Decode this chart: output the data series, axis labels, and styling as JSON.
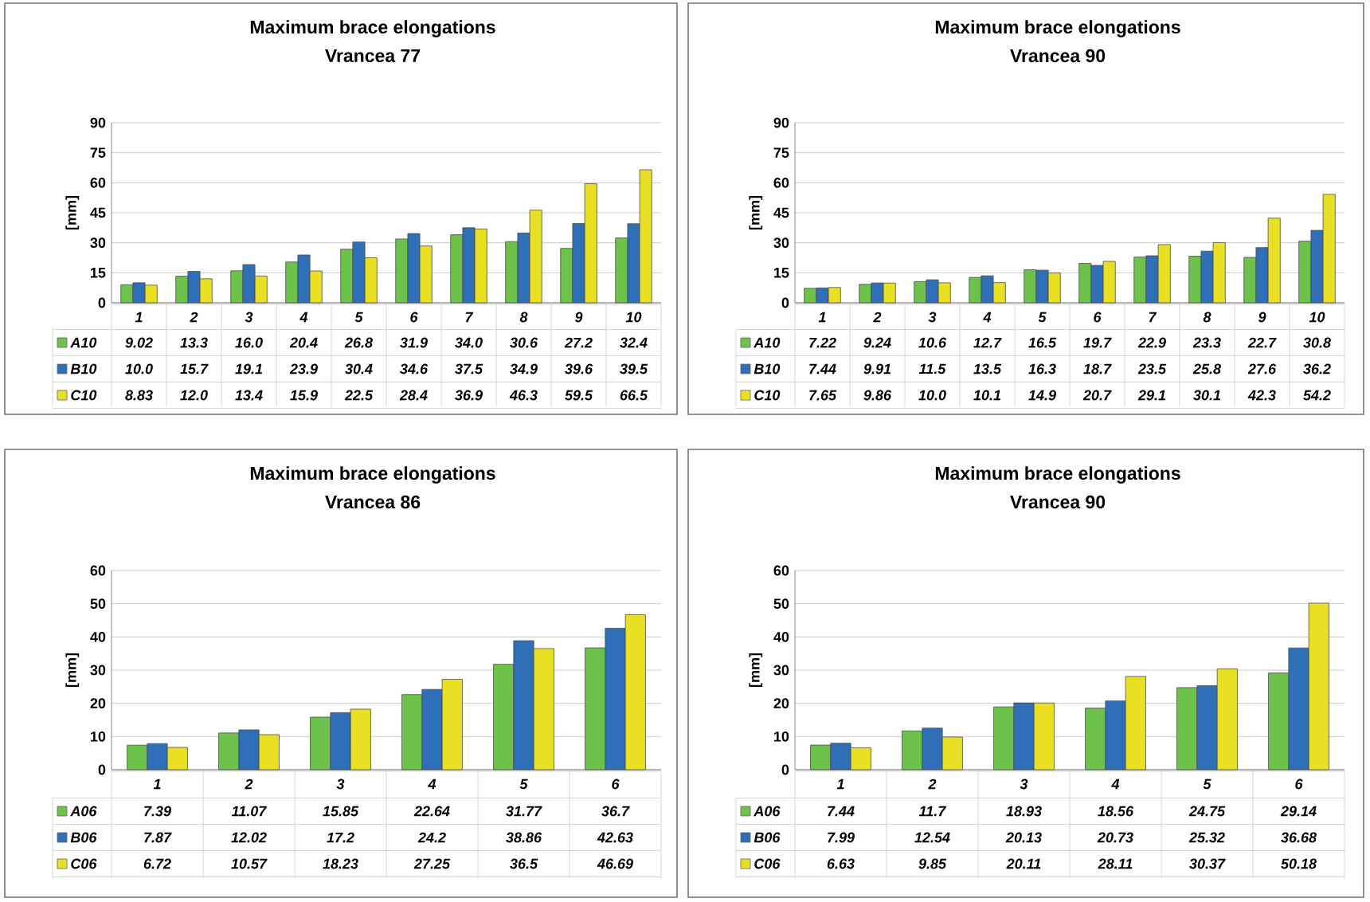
{
  "chart_data": [
    {
      "type": "bar",
      "title": "Maximum brace elongations",
      "subtitle": "Vrancea 77",
      "ylabel": "[mm]",
      "categories": [
        "1",
        "2",
        "3",
        "4",
        "5",
        "6",
        "7",
        "8",
        "9",
        "10"
      ],
      "ylim": [
        0,
        90
      ],
      "yticks": [
        0,
        15,
        30,
        45,
        60,
        75,
        90
      ],
      "grid": "y",
      "legend": "bottom",
      "series": [
        {
          "name": "A10",
          "color": "#6cc24a",
          "values": [
            9.02,
            13.3,
            16.0,
            20.4,
            26.8,
            31.9,
            34.0,
            30.6,
            27.2,
            32.4
          ],
          "value_labels": [
            "9.02",
            "13.3",
            "16.0",
            "20.4",
            "26.8",
            "31.9",
            "34.0",
            "30.6",
            "27.2",
            "32.4"
          ]
        },
        {
          "name": "B10",
          "color": "#2e6fb7",
          "values": [
            10.0,
            15.7,
            19.1,
            23.9,
            30.4,
            34.6,
            37.5,
            34.9,
            39.6,
            39.5
          ],
          "value_labels": [
            "10.0",
            "15.7",
            "19.1",
            "23.9",
            "30.4",
            "34.6",
            "37.5",
            "34.9",
            "39.6",
            "39.5"
          ]
        },
        {
          "name": "C10",
          "color": "#eae023",
          "values": [
            8.83,
            12.0,
            13.4,
            15.9,
            22.5,
            28.4,
            36.9,
            46.3,
            59.5,
            66.5
          ],
          "value_labels": [
            "8.83",
            "12.0",
            "13.4",
            "15.9",
            "22.5",
            "28.4",
            "36.9",
            "46.3",
            "59.5",
            "66.5"
          ]
        }
      ]
    },
    {
      "type": "bar",
      "title": "Maximum brace elongations",
      "subtitle": "Vrancea 90",
      "ylabel": "[mm]",
      "categories": [
        "1",
        "2",
        "3",
        "4",
        "5",
        "6",
        "7",
        "8",
        "9",
        "10"
      ],
      "ylim": [
        0,
        90
      ],
      "yticks": [
        0,
        15,
        30,
        45,
        60,
        75,
        90
      ],
      "grid": "y",
      "legend": "bottom",
      "series": [
        {
          "name": "A10",
          "color": "#6cc24a",
          "values": [
            7.22,
            9.24,
            10.6,
            12.7,
            16.5,
            19.7,
            22.9,
            23.3,
            22.7,
            30.8
          ],
          "value_labels": [
            "7.22",
            "9.24",
            "10.6",
            "12.7",
            "16.5",
            "19.7",
            "22.9",
            "23.3",
            "22.7",
            "30.8"
          ]
        },
        {
          "name": "B10",
          "color": "#2e6fb7",
          "values": [
            7.44,
            9.91,
            11.5,
            13.5,
            16.3,
            18.7,
            23.5,
            25.8,
            27.6,
            36.2
          ],
          "value_labels": [
            "7.44",
            "9.91",
            "11.5",
            "13.5",
            "16.3",
            "18.7",
            "23.5",
            "25.8",
            "27.6",
            "36.2"
          ]
        },
        {
          "name": "C10",
          "color": "#eae023",
          "values": [
            7.65,
            9.86,
            10.0,
            10.1,
            14.9,
            20.7,
            29.1,
            30.1,
            42.3,
            54.2
          ],
          "value_labels": [
            "7.65",
            "9.86",
            "10.0",
            "10.1",
            "14.9",
            "20.7",
            "29.1",
            "30.1",
            "42.3",
            "54.2"
          ]
        }
      ]
    },
    {
      "type": "bar",
      "title": "Maximum brace elongations",
      "subtitle": "Vrancea 86",
      "ylabel": "[mm]",
      "categories": [
        "1",
        "2",
        "3",
        "4",
        "5",
        "6"
      ],
      "ylim": [
        0,
        60
      ],
      "yticks": [
        0,
        10,
        20,
        30,
        40,
        50,
        60
      ],
      "grid": "y",
      "legend": "bottom",
      "series": [
        {
          "name": "A06",
          "color": "#6cc24a",
          "values": [
            7.39,
            11.07,
            15.85,
            22.64,
            31.77,
            36.7
          ],
          "value_labels": [
            "7.39",
            "11.07",
            "15.85",
            "22.64",
            "31.77",
            "36.7"
          ]
        },
        {
          "name": "B06",
          "color": "#2e6fb7",
          "values": [
            7.87,
            12.02,
            17.2,
            24.2,
            38.86,
            42.63
          ],
          "value_labels": [
            "7.87",
            "12.02",
            "17.2",
            "24.2",
            "38.86",
            "42.63"
          ]
        },
        {
          "name": "C06",
          "color": "#eae023",
          "values": [
            6.72,
            10.57,
            18.23,
            27.25,
            36.5,
            46.69
          ],
          "value_labels": [
            "6.72",
            "10.57",
            "18.23",
            "27.25",
            "36.5",
            "46.69"
          ]
        }
      ]
    },
    {
      "type": "bar",
      "title": "Maximum brace elongations",
      "subtitle": "Vrancea 90",
      "ylabel": "[mm]",
      "categories": [
        "1",
        "2",
        "3",
        "4",
        "5",
        "6"
      ],
      "ylim": [
        0,
        60
      ],
      "yticks": [
        0,
        10,
        20,
        30,
        40,
        50,
        60
      ],
      "grid": "y",
      "legend": "bottom",
      "series": [
        {
          "name": "A06",
          "color": "#6cc24a",
          "values": [
            7.44,
            11.7,
            18.93,
            18.56,
            24.75,
            29.14
          ],
          "value_labels": [
            "7.44",
            "11.7",
            "18.93",
            "18.56",
            "24.75",
            "29.14"
          ]
        },
        {
          "name": "B06",
          "color": "#2e6fb7",
          "values": [
            7.99,
            12.54,
            20.13,
            20.73,
            25.32,
            36.68
          ],
          "value_labels": [
            "7.99",
            "12.54",
            "20.13",
            "20.73",
            "25.32",
            "36.68"
          ]
        },
        {
          "name": "C06",
          "color": "#eae023",
          "values": [
            6.63,
            9.85,
            20.11,
            28.11,
            30.37,
            50.18
          ],
          "value_labels": [
            "6.63",
            "9.85",
            "20.11",
            "28.11",
            "30.37",
            "50.18"
          ]
        }
      ]
    }
  ]
}
